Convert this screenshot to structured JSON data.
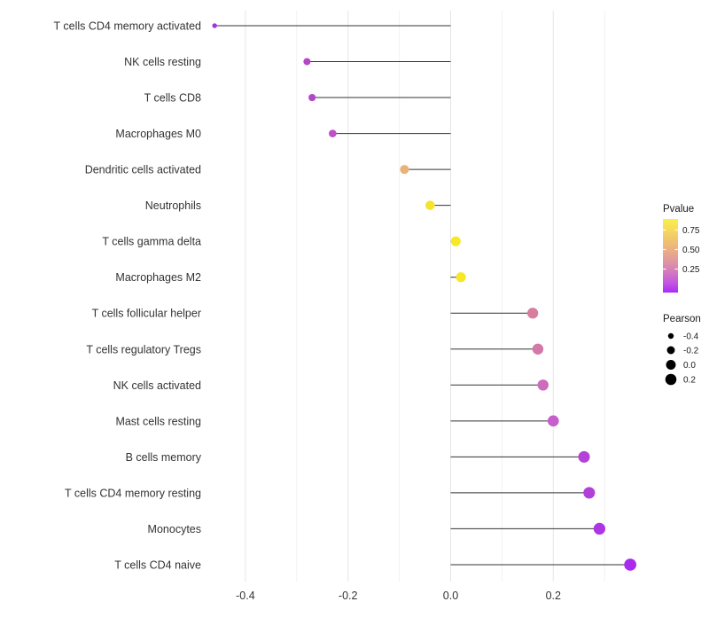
{
  "figure": {
    "background": "#ffffff"
  },
  "chart_data": {
    "type": "lollipop",
    "orientation": "horizontal",
    "title": "",
    "xlabel": "",
    "ylabel": "",
    "grid": "vertical-only",
    "baseline": 0.0,
    "xlim": [
      -0.5,
      0.39
    ],
    "x_ticks_major": [
      -0.4,
      -0.2,
      0.0,
      0.2
    ],
    "x_tick_labels": [
      "-0.4",
      "-0.2",
      "0.0",
      "0.2"
    ],
    "x_ticks_minor": [
      -0.3,
      -0.1,
      0.1,
      0.3
    ],
    "categories": [
      "T cells CD4 memory activated",
      "NK cells resting",
      "T cells CD8",
      "Macrophages M0",
      "Dendritic cells activated",
      "Neutrophils",
      "T cells gamma delta",
      "Macrophages M2",
      "T cells follicular helper",
      "T cells regulatory  Tregs",
      "NK cells activated",
      "Mast cells resting",
      "B cells memory",
      "T cells CD4 memory resting",
      "Monocytes",
      "T cells CD4 naive"
    ],
    "series": [
      {
        "name": "Pearson",
        "values": [
          -0.46,
          -0.28,
          -0.27,
          -0.23,
          -0.09,
          -0.04,
          0.01,
          0.02,
          0.16,
          0.17,
          0.18,
          0.2,
          0.26,
          0.27,
          0.29,
          0.35
        ],
        "point_colors": [
          "#a232e2",
          "#b546c9",
          "#b348c6",
          "#bb50c7",
          "#e9b377",
          "#f6e32c",
          "#f8e724",
          "#f8e724",
          "#d77d9e",
          "#d378a8",
          "#cd6bbc",
          "#c75ecb",
          "#b441d8",
          "#b33fda",
          "#ae35e4",
          "#a92bee"
        ],
        "pvalue_estimated_from_color": [
          0.03,
          0.15,
          0.16,
          0.18,
          0.55,
          0.82,
          0.88,
          0.88,
          0.35,
          0.32,
          0.26,
          0.2,
          0.1,
          0.1,
          0.06,
          0.02
        ]
      }
    ],
    "stick_color": "#333333",
    "colors": {
      "major_grid": "#e6e6e6",
      "minor_grid": "#f2f2f2",
      "axis_text": "#333333",
      "legend_text": "#1a1a1a"
    },
    "legends": {
      "pvalue": {
        "title": "Pvalue",
        "tick_labels": [
          "0.75",
          "0.50",
          "0.25"
        ],
        "gradient_top_to_bottom": [
          "#f9ef4b",
          "#f7dd58",
          "#f2c96a",
          "#edb77c",
          "#e5a292",
          "#dc8cab",
          "#d173c6",
          "#c254e2",
          "#aa2bf7"
        ]
      },
      "pearson": {
        "title": "Pearson",
        "tick_labels": [
          "-0.4",
          "-0.2",
          "0.0",
          "0.2"
        ],
        "tick_values": [
          -0.4,
          -0.2,
          0.0,
          0.2
        ],
        "dot_color": "#000000"
      }
    }
  }
}
